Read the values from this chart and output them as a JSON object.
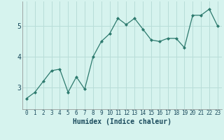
{
  "x": [
    0,
    1,
    2,
    3,
    4,
    5,
    6,
    7,
    8,
    9,
    10,
    11,
    12,
    13,
    14,
    15,
    16,
    17,
    18,
    19,
    20,
    21,
    22,
    23
  ],
  "y": [
    2.65,
    2.85,
    3.2,
    3.55,
    3.6,
    2.85,
    3.35,
    2.95,
    4.0,
    4.5,
    4.75,
    5.25,
    5.05,
    5.25,
    4.9,
    4.55,
    4.5,
    4.6,
    4.6,
    4.3,
    5.35,
    5.35,
    5.55,
    5.0
  ],
  "line_color": "#2d7a6e",
  "marker": "D",
  "marker_size": 2.0,
  "bg_color": "#d6f3ee",
  "grid_color": "#b8ddd8",
  "xlabel": "Humidex (Indice chaleur)",
  "xlabel_fontsize": 7,
  "xlabel_fontweight": "bold",
  "xlabel_color": "#1a4a5c",
  "yticks": [
    3,
    4,
    5
  ],
  "xticks": [
    0,
    1,
    2,
    3,
    4,
    5,
    6,
    7,
    8,
    9,
    10,
    11,
    12,
    13,
    14,
    15,
    16,
    17,
    18,
    19,
    20,
    21,
    22,
    23
  ],
  "ylim": [
    2.3,
    5.8
  ],
  "xlim": [
    -0.5,
    23.5
  ],
  "ytick_fontsize": 7,
  "xtick_fontsize": 5.5,
  "linewidth": 0.9,
  "spine_color": "#888888"
}
